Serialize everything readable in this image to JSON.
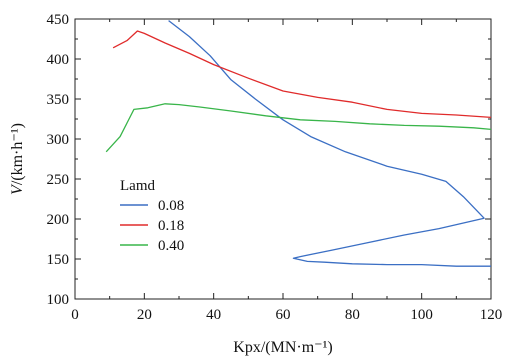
{
  "chart_data": {
    "type": "line",
    "xlabel": "Kpx/(MN·m⁻¹)",
    "ylabel_italic": "V",
    "ylabel_rest": "/(km·h⁻¹)",
    "xlim": [
      0,
      120
    ],
    "ylim": [
      100,
      450
    ],
    "xticks": [
      "0",
      "20",
      "40",
      "60",
      "80",
      "100",
      "120"
    ],
    "yticks": [
      "100",
      "150",
      "200",
      "250",
      "300",
      "350",
      "400",
      "450"
    ],
    "grid": false,
    "legend": {
      "title": "Lamd",
      "placement": "lower-left"
    },
    "series": [
      {
        "name": "0.08",
        "color": "#3b6fc4",
        "points": [
          [
            27,
            448
          ],
          [
            33,
            428
          ],
          [
            39,
            404
          ],
          [
            45,
            374
          ],
          [
            52,
            350
          ],
          [
            60,
            324
          ],
          [
            68,
            303
          ],
          [
            78,
            284
          ],
          [
            90,
            266
          ],
          [
            100,
            256
          ],
          [
            107,
            247
          ],
          [
            112,
            228
          ],
          [
            118,
            201
          ],
          [
            105,
            188
          ],
          [
            95,
            180
          ],
          [
            84,
            170
          ],
          [
            74,
            161
          ],
          [
            65,
            153
          ],
          [
            63,
            151
          ],
          [
            67,
            147
          ],
          [
            72,
            146
          ],
          [
            80,
            144
          ],
          [
            90,
            143
          ],
          [
            100,
            143
          ],
          [
            110,
            141
          ],
          [
            120,
            141
          ]
        ]
      },
      {
        "name": "0.18",
        "color": "#e02b2b",
        "points": [
          [
            11,
            414
          ],
          [
            15,
            423
          ],
          [
            18,
            435
          ],
          [
            20,
            432
          ],
          [
            26,
            420
          ],
          [
            33,
            407
          ],
          [
            40,
            393
          ],
          [
            50,
            376
          ],
          [
            60,
            360
          ],
          [
            70,
            352
          ],
          [
            80,
            346
          ],
          [
            90,
            337
          ],
          [
            100,
            332
          ],
          [
            110,
            330
          ],
          [
            120,
            327
          ]
        ]
      },
      {
        "name": "0.40",
        "color": "#39b54a",
        "points": [
          [
            9,
            284
          ],
          [
            13,
            303
          ],
          [
            17,
            337
          ],
          [
            21,
            339
          ],
          [
            26,
            344
          ],
          [
            30,
            343
          ],
          [
            36,
            340
          ],
          [
            45,
            335
          ],
          [
            55,
            329
          ],
          [
            65,
            324
          ],
          [
            75,
            322
          ],
          [
            85,
            319
          ],
          [
            95,
            317
          ],
          [
            105,
            316
          ],
          [
            115,
            314
          ],
          [
            120,
            312
          ]
        ]
      }
    ]
  }
}
